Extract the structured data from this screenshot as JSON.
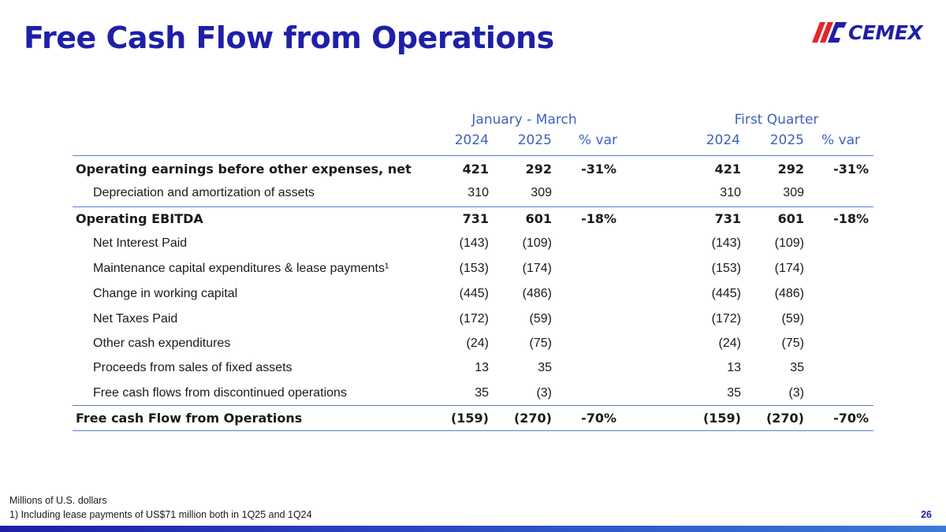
{
  "title": "Free Cash Flow from Operations",
  "logo_text": "CEMEX",
  "header": {
    "group1": "January - March",
    "group2": "First Quarter",
    "cols": [
      "2024",
      "2025",
      "% var",
      "2024",
      "2025",
      "% var"
    ]
  },
  "rows": [
    {
      "label": "Operating earnings before other expenses, net",
      "v": [
        "421",
        "292",
        "-31%",
        "421",
        "292",
        "-31%"
      ]
    },
    {
      "label": "Depreciation and amortization of assets",
      "v": [
        "310",
        "309",
        "",
        "310",
        "309",
        ""
      ]
    },
    {
      "label": "Operating EBITDA",
      "v": [
        "731",
        "601",
        "-18%",
        "731",
        "601",
        "-18%"
      ]
    },
    {
      "label": "Net Interest Paid",
      "v": [
        "(143)",
        "(109)",
        "",
        "(143)",
        "(109)",
        ""
      ]
    },
    {
      "label": "Maintenance capital expenditures & lease payments¹",
      "v": [
        "(153)",
        "(174)",
        "",
        "(153)",
        "(174)",
        ""
      ]
    },
    {
      "label": "Change in working capital",
      "v": [
        "(445)",
        "(486)",
        "",
        "(445)",
        "(486)",
        ""
      ]
    },
    {
      "label": "Net Taxes Paid",
      "v": [
        "(172)",
        "(59)",
        "",
        "(172)",
        "(59)",
        ""
      ]
    },
    {
      "label": "Other cash expenditures",
      "v": [
        "(24)",
        "(75)",
        "",
        "(24)",
        "(75)",
        ""
      ]
    },
    {
      "label": "Proceeds from sales of fixed assets",
      "v": [
        "13",
        "35",
        "",
        "13",
        "35",
        ""
      ]
    },
    {
      "label": "Free cash flows from discontinued operations",
      "v": [
        "35",
        "(3)",
        "",
        "35",
        "(3)",
        ""
      ]
    },
    {
      "label": "Free cash Flow from Operations",
      "v": [
        "(159)",
        "(270)",
        "-70%",
        "(159)",
        "(270)",
        "-70%"
      ]
    }
  ],
  "footnotes": {
    "units": "Millions of U.S. dollars",
    "note1": "1) Including lease payments of US$71 million both in 1Q25 and 1Q24"
  },
  "page_number": "26",
  "colors": {
    "brand": "#1f1fa8",
    "header": "#3e63b8",
    "accent_red": "#e3262d"
  }
}
